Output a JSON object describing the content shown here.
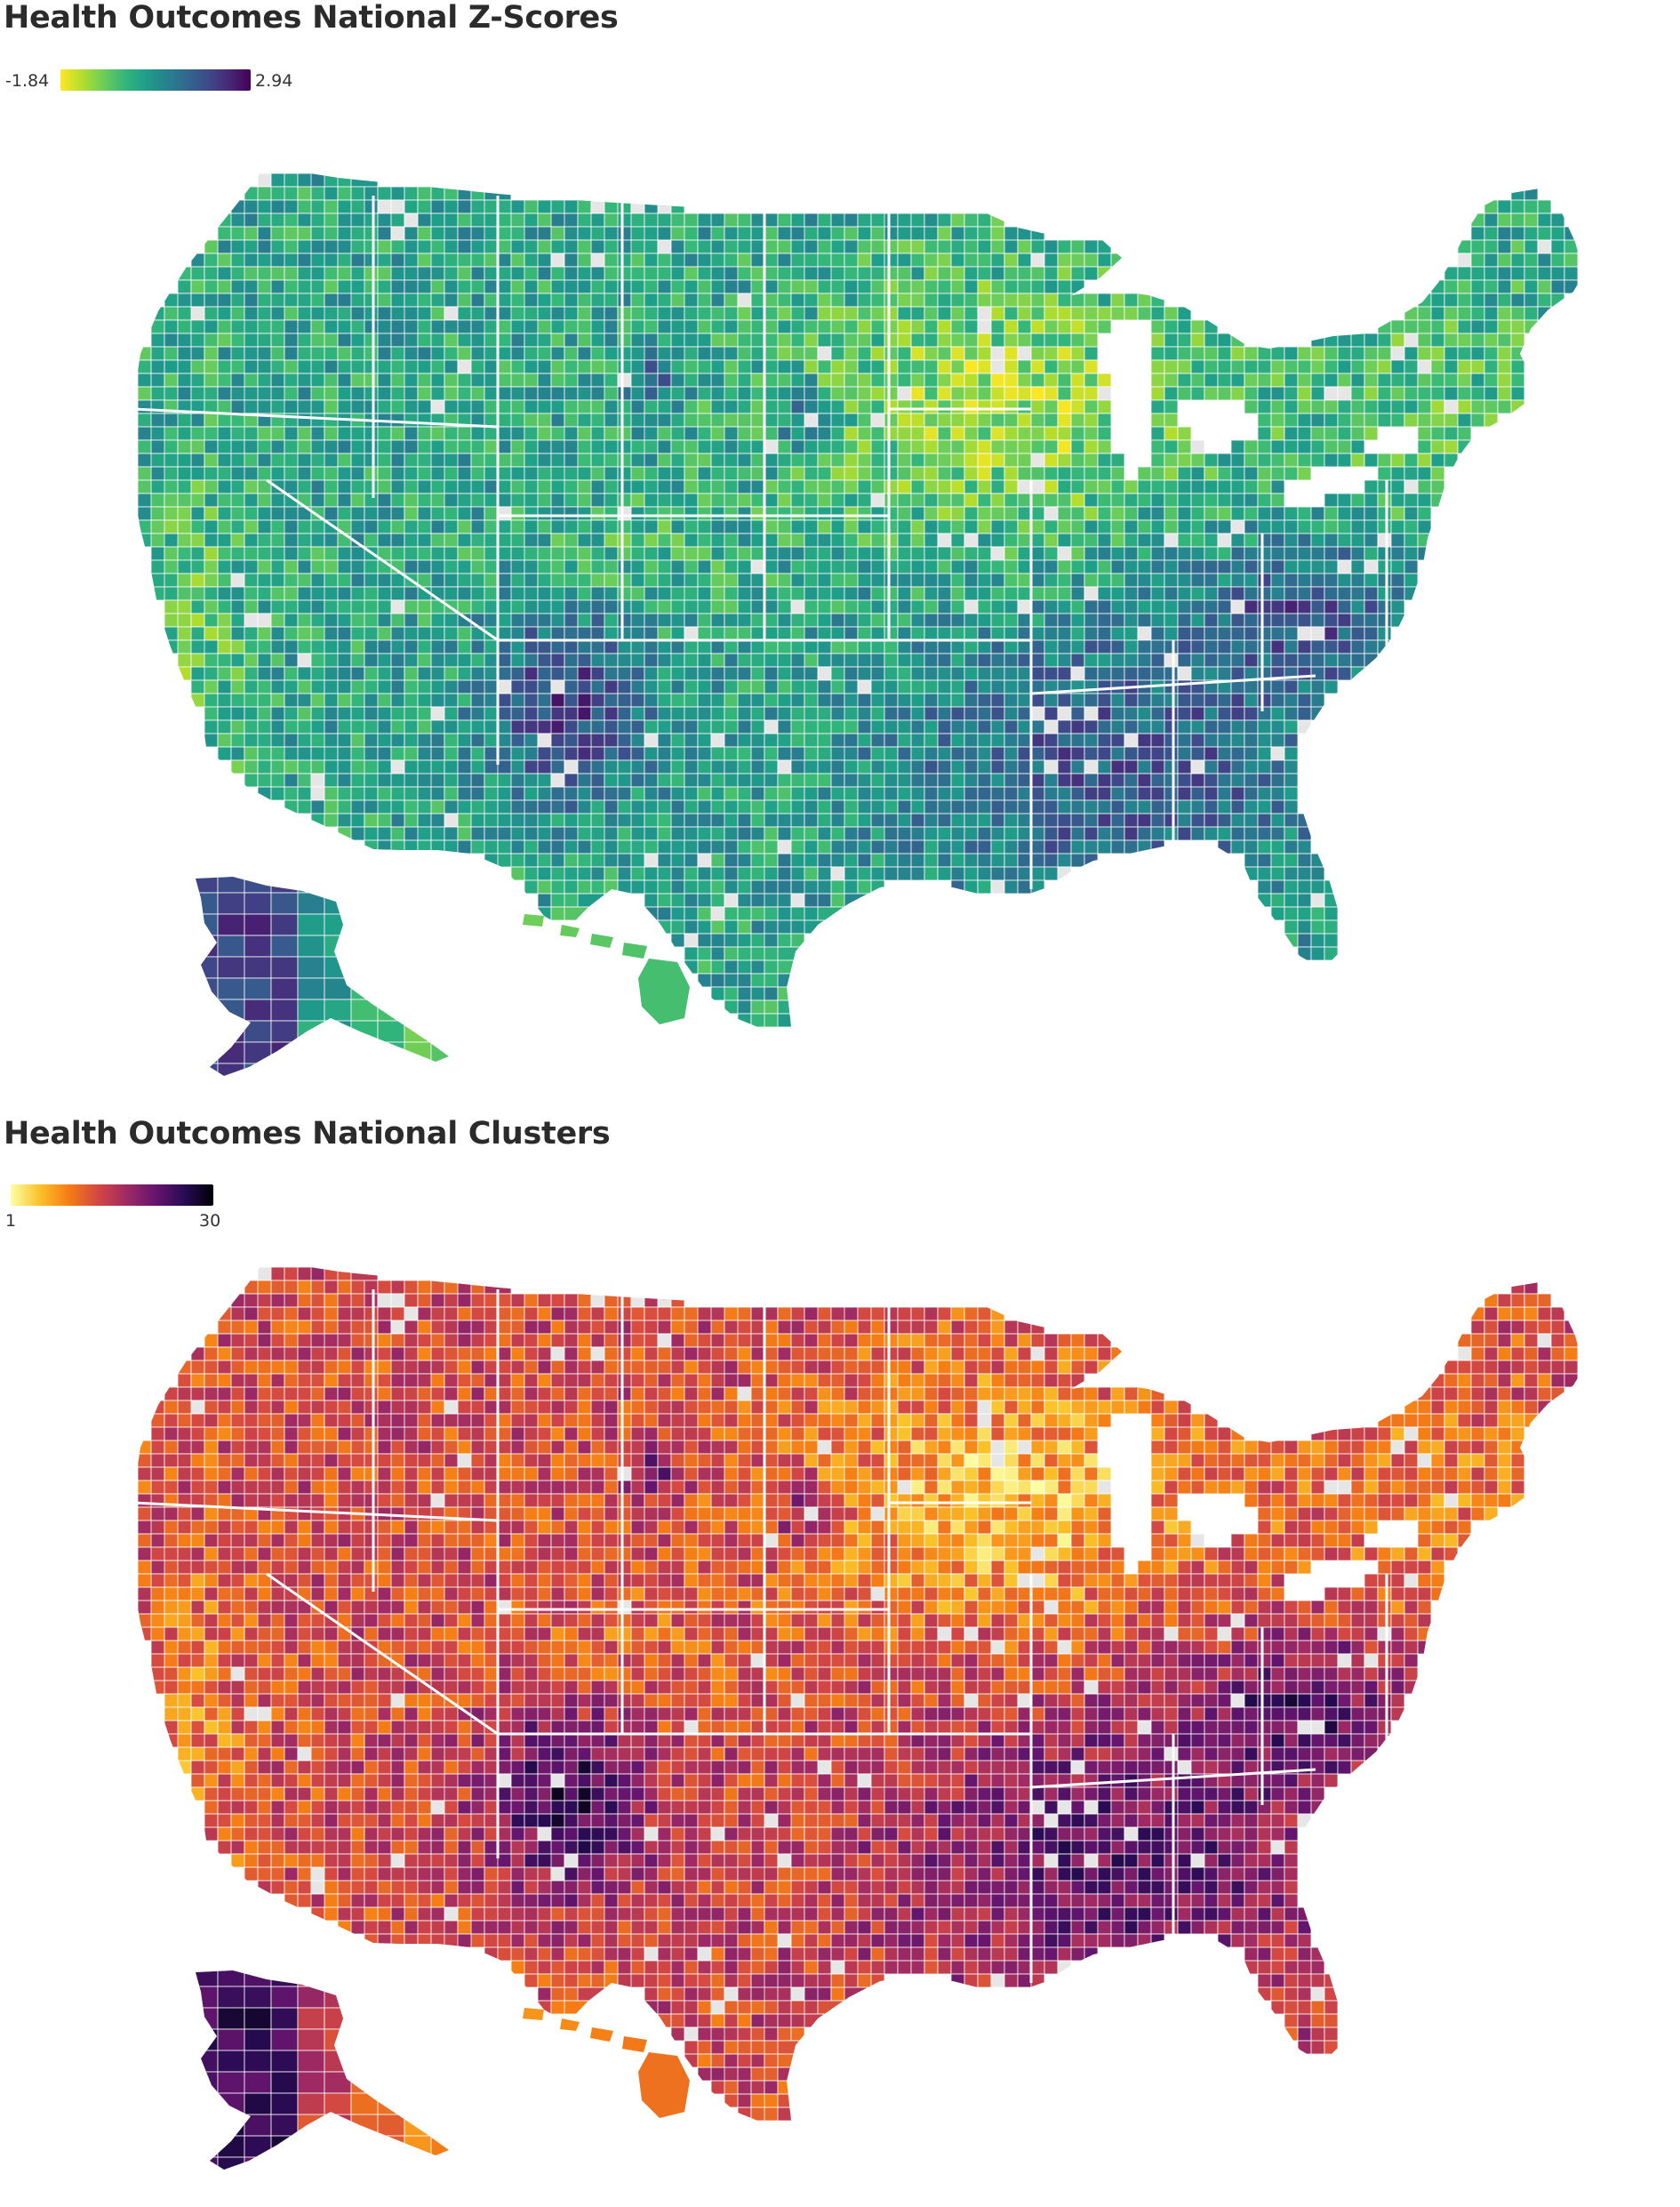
{
  "panels": [
    {
      "id": "zscore",
      "title": "Health Outcomes National Z-Scores",
      "legend": {
        "min_label": "-1.84",
        "max_label": "2.94",
        "min": -1.84,
        "max": 2.94,
        "colormap": "viridis (reversed: yellow = low, purple = high)"
      }
    },
    {
      "id": "cluster",
      "title": "Health Outcomes National Clusters",
      "legend": {
        "min_label": "1",
        "max_label": "30",
        "min": 1,
        "max": 30,
        "colormap": "inferno (reversed: pale yellow = 1, black = 30)"
      }
    }
  ],
  "colors": {
    "missing_data": "#e6e6e6",
    "border": "#ffffff",
    "title": "#2b2b2b"
  }
}
